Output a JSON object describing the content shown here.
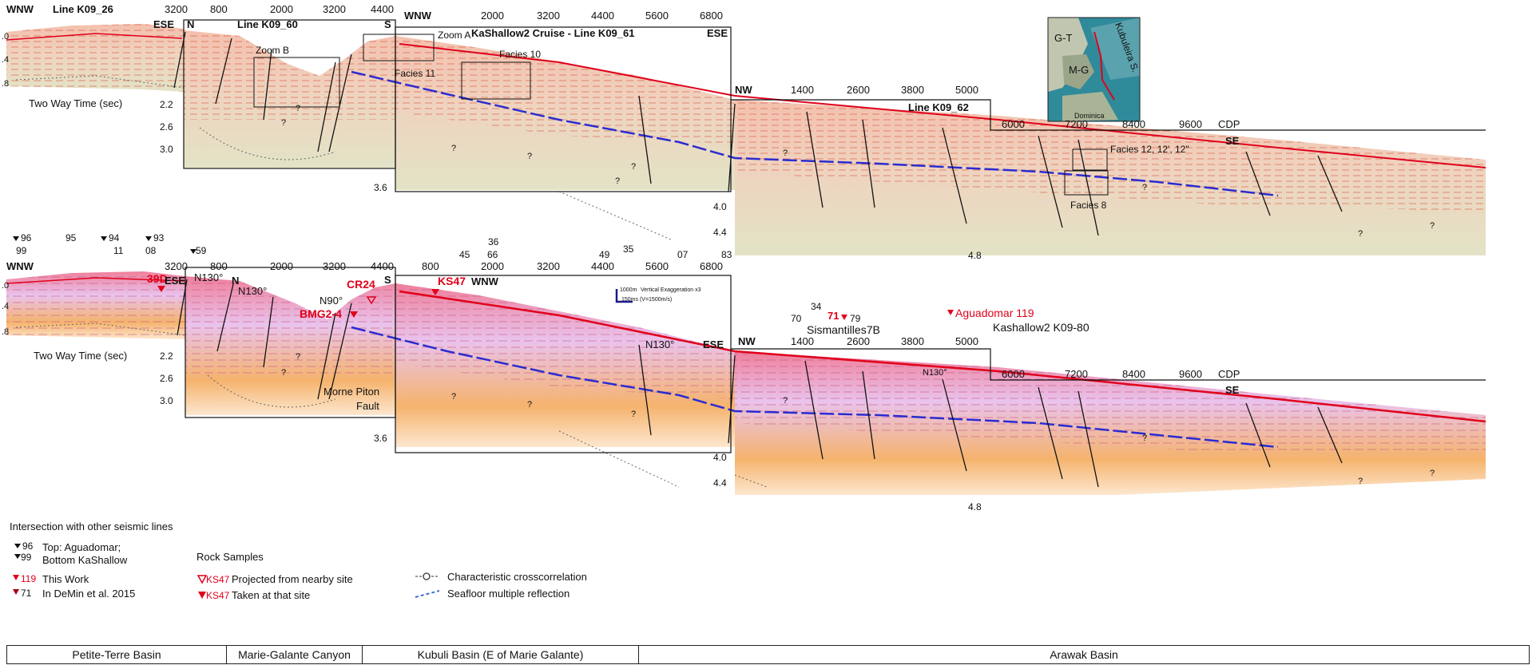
{
  "top": {
    "line_k09_26": {
      "left_dir": "WNW",
      "title": "Line K09_26",
      "right_dir": "ESE",
      "tick": "3200",
      "twt_label": "Two Way Time (sec)"
    },
    "line_k09_60": {
      "left_dir": "N",
      "title": "Line K09_60",
      "right_dir": "S",
      "ticks": [
        "800",
        "2000",
        "3200",
        "4400"
      ],
      "zoom": "Zoom B"
    },
    "line_k09_61": {
      "left_dir": "WNW",
      "title": "KaShallow2 Cruise - Line K09_61",
      "right_dir": "ESE",
      "ticks": [
        "2000",
        "3200",
        "4400",
        "5600",
        "6800"
      ],
      "zoom": "Zoom A",
      "facies_a": "Facies 10",
      "facies_b": "Facies 11"
    },
    "line_k09_62": {
      "left_dir": "NW",
      "title": "Line K09_62",
      "right_dir": "SE",
      "ticks_top": [
        "1400",
        "2600",
        "3800",
        "5000"
      ],
      "ticks_bottom": [
        "6000",
        "7200",
        "8400",
        "9600"
      ],
      "cdp": "CDP",
      "facies_a": "Facies 12, 12', 12\"",
      "facies_b": "Facies 8"
    },
    "depth_labels": [
      ".0",
      ".4",
      ".8",
      "2.2",
      "2.6",
      "3.0",
      "3.6",
      "4.0",
      "4.4",
      "4.8"
    ],
    "map": {
      "gt": "G-T",
      "mg": "M-G",
      "kubuleira": "Kubuleira S.",
      "dominica": "Dominica"
    }
  },
  "bottom": {
    "intersections_row1": [
      "96",
      "95",
      "94",
      "93"
    ],
    "intersections_row2": [
      "99",
      "11",
      "08",
      "59"
    ],
    "intersections_mid": [
      "36",
      "45",
      "66",
      "49",
      "35",
      "07",
      "83"
    ],
    "intersections_right": [
      "34",
      "70",
      "71",
      "79"
    ],
    "line_k09_26": {
      "left_dir": "WNW",
      "right_dir": "ESE",
      "tick": "3200",
      "twt_label": "Two Way Time (sec)",
      "sample": "39D"
    },
    "line_k09_60": {
      "left_dir": "N",
      "right_dir": "S",
      "ticks": [
        "800",
        "2000",
        "3200",
        "4400"
      ],
      "n130a": "N130°",
      "n130b": "N130°",
      "n90": "N90°",
      "fault": "Morne Piton",
      "fault2": "Fault",
      "sample_cr24": "CR24",
      "sample_bmg": "BMG2-4"
    },
    "line_k09_61": {
      "left_dir": "WNW",
      "right_dir": "ESE",
      "ticks": [
        "800",
        "2000",
        "3200",
        "4400",
        "5600",
        "6800"
      ],
      "n130": "N130°",
      "sample": "KS47",
      "scale_v": "1000m",
      "scale_text": "Vertical Exaggeration x3",
      "scale_h": "150ms (V=1500m/s)"
    },
    "line_k09_62": {
      "left_dir": "NW",
      "right_dir": "SE",
      "ticks_top": [
        "1400",
        "2600",
        "3800",
        "5000"
      ],
      "ticks_bottom": [
        "6000",
        "7200",
        "8400",
        "9600"
      ],
      "cdp": "CDP",
      "n130": "N130°",
      "sismantilles": "Sismantilles7B",
      "aguadomar": "Aguadomar 119",
      "kashallow": "Kashallow2 K09-80"
    },
    "depth_labels": [
      ".0",
      ".4",
      ".8",
      "2.2",
      "2.6",
      "3.0",
      "3.6",
      "4.0",
      "4.4",
      "4.8"
    ]
  },
  "legend": {
    "title": "Intersection with other seismic lines",
    "top_num": "96",
    "bottom_num": "99",
    "top_text": "Top: Aguadomar;",
    "bottom_text": "Bottom KaShallow",
    "this_work_num": "119",
    "this_work": "This Work",
    "demin_num": "71",
    "demin": "In DeMin et al. 2015",
    "rock_title": "Rock Samples",
    "projected_id": "KS47",
    "projected": "Projected from nearby site",
    "taken_id": "KS47",
    "taken": "Taken at that site",
    "crosscorr": "Characteristic crosscorrelation",
    "multiple": "Seafloor multiple reflection"
  },
  "basins": [
    "Petite-Terre Basin",
    "Marie-Galante Canyon",
    "Kubuli Basin (E of Marie Galante)",
    "Arawak Basin"
  ],
  "colors": {
    "sediment_top": "#f4c9b8",
    "sediment_bottom": "#e5e4c4",
    "reflector_red": "#e0001b",
    "reflector_blue": "#2b2bd0",
    "purple_fill": "#e6c8ea",
    "orange_fill": "#f7b36a",
    "map_sea": "#2f8a9a"
  }
}
